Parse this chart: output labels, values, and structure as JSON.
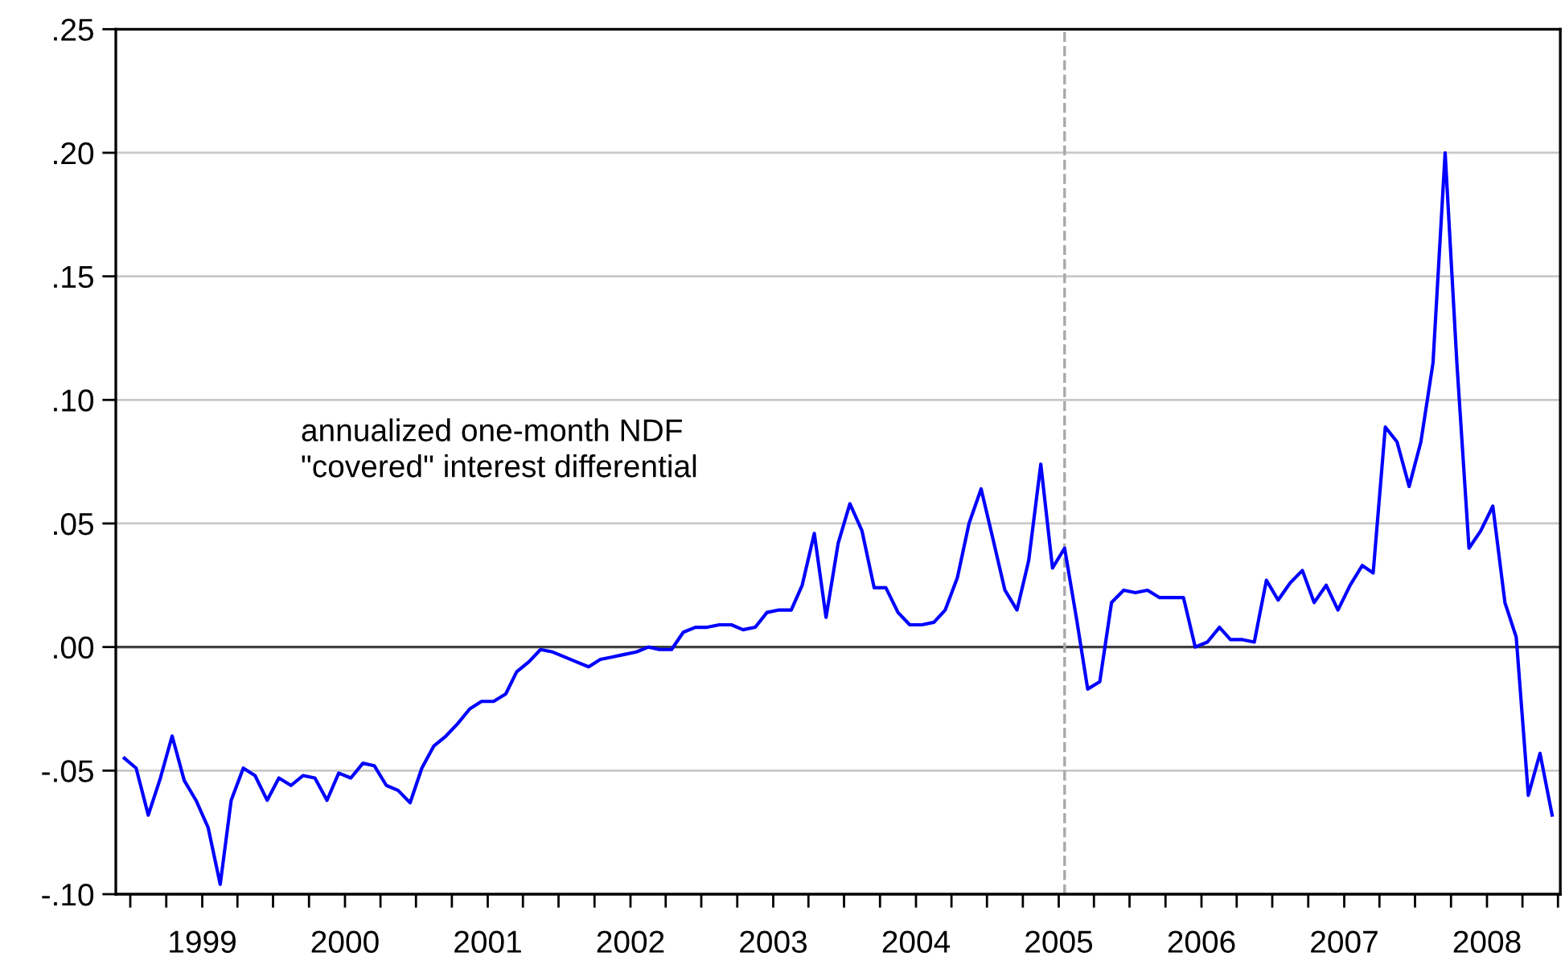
{
  "chart_data": {
    "type": "line",
    "annotations": [
      "annualized one-month NDF\n\"covered\" interest differential"
    ],
    "x": [
      "1998-06-16",
      "1998-07-16",
      "1998-08-16",
      "1998-09-16",
      "1998-10-16",
      "1998-11-16",
      "1998-12-16",
      "1999-01-16",
      "1999-02-16",
      "1999-03-16",
      "1999-04-16",
      "1999-05-16",
      "1999-06-16",
      "1999-07-16",
      "1999-08-16",
      "1999-09-16",
      "1999-10-16",
      "1999-11-16",
      "1999-12-16",
      "2000-01-16",
      "2000-02-16",
      "2000-03-16",
      "2000-04-16",
      "2000-05-16",
      "2000-06-16",
      "2000-07-16",
      "2000-08-16",
      "2000-09-16",
      "2000-10-16",
      "2000-11-16",
      "2000-12-16",
      "2001-01-16",
      "2001-02-16",
      "2001-03-16",
      "2001-04-16",
      "2001-05-16",
      "2001-06-16",
      "2001-07-16",
      "2001-08-16",
      "2001-09-16",
      "2001-10-16",
      "2001-11-16",
      "2001-12-16",
      "2002-01-16",
      "2002-02-16",
      "2002-03-16",
      "2002-04-16",
      "2002-05-16",
      "2002-06-16",
      "2002-07-16",
      "2002-08-16",
      "2002-09-16",
      "2002-10-16",
      "2002-11-16",
      "2002-12-16",
      "2003-01-16",
      "2003-02-16",
      "2003-03-16",
      "2003-04-16",
      "2003-05-16",
      "2003-06-16",
      "2003-07-16",
      "2003-08-16",
      "2003-09-16",
      "2003-10-16",
      "2003-11-16",
      "2003-12-16",
      "2004-01-16",
      "2004-02-16",
      "2004-03-16",
      "2004-04-16",
      "2004-05-16",
      "2004-06-16",
      "2004-07-16",
      "2004-08-16",
      "2004-09-16",
      "2004-10-16",
      "2004-11-16",
      "2004-12-16",
      "2005-01-16",
      "2005-02-16",
      "2005-03-16",
      "2005-04-16",
      "2005-05-16",
      "2005-06-16",
      "2005-07-16",
      "2005-08-16",
      "2005-09-16",
      "2005-10-16",
      "2005-11-16",
      "2005-12-16",
      "2006-01-16",
      "2006-02-16",
      "2006-03-16",
      "2006-04-16",
      "2006-05-16",
      "2006-06-16",
      "2006-07-16",
      "2006-08-16",
      "2006-09-16",
      "2006-10-16",
      "2006-11-16",
      "2006-12-16",
      "2007-01-16",
      "2007-02-16",
      "2007-03-16",
      "2007-04-16",
      "2007-05-16",
      "2007-06-16",
      "2007-07-16",
      "2007-08-16",
      "2007-09-16",
      "2007-10-16",
      "2007-11-16",
      "2007-12-16",
      "2008-01-16",
      "2008-02-16",
      "2008-03-16",
      "2008-04-16",
      "2008-05-16",
      "2008-06-16"
    ],
    "series": [
      {
        "color": "#0000ff",
        "values": [
          -0.045,
          -0.049,
          -0.068,
          -0.053,
          -0.036,
          -0.054,
          -0.062,
          -0.073,
          -0.096,
          -0.062,
          -0.049,
          -0.052,
          -0.062,
          -0.053,
          -0.056,
          -0.052,
          -0.053,
          -0.062,
          -0.051,
          -0.053,
          -0.047,
          -0.048,
          -0.056,
          -0.058,
          -0.063,
          -0.049,
          -0.04,
          -0.036,
          -0.031,
          -0.025,
          -0.022,
          -0.022,
          -0.019,
          -0.01,
          -0.006,
          -0.001,
          -0.002,
          -0.004,
          -0.006,
          -0.008,
          -0.005,
          -0.004,
          -0.003,
          -0.002,
          0.0,
          -0.001,
          -0.001,
          0.006,
          0.008,
          0.008,
          0.009,
          0.009,
          0.007,
          0.008,
          0.014,
          0.015,
          0.015,
          0.025,
          0.046,
          0.012,
          0.042,
          0.058,
          0.047,
          0.024,
          0.024,
          0.014,
          0.009,
          0.009,
          0.01,
          0.015,
          0.028,
          0.05,
          0.064,
          0.044,
          0.023,
          0.015,
          0.035,
          0.074,
          0.032,
          0.04,
          0.011,
          -0.017,
          -0.014,
          0.018,
          0.023,
          0.022,
          0.023,
          0.02,
          0.02,
          0.02,
          0.0,
          0.002,
          0.008,
          0.003,
          0.003,
          0.002,
          0.027,
          0.019,
          0.026,
          0.031,
          0.018,
          0.025,
          0.015,
          0.025,
          0.033,
          0.03,
          0.089,
          0.083,
          0.065,
          0.083,
          0.115,
          0.2,
          0.115,
          0.04,
          0.047,
          0.057,
          0.018,
          0.004,
          -0.06,
          -0.043,
          -0.068
        ]
      }
    ],
    "xlim": [
      "1998-05-25",
      "2008-07-07"
    ],
    "xticks": [
      {
        "value": "1998-07-01",
        "label": null
      },
      {
        "value": "1998-10-01",
        "label": null
      },
      {
        "value": "1999-01-01",
        "label": "1999"
      },
      {
        "value": "1999-04-01",
        "label": null
      },
      {
        "value": "1999-07-01",
        "label": null
      },
      {
        "value": "1999-10-01",
        "label": null
      },
      {
        "value": "2000-01-01",
        "label": "2000"
      },
      {
        "value": "2000-04-01",
        "label": null
      },
      {
        "value": "2000-07-01",
        "label": null
      },
      {
        "value": "2000-10-01",
        "label": null
      },
      {
        "value": "2001-01-01",
        "label": "2001"
      },
      {
        "value": "2001-04-01",
        "label": null
      },
      {
        "value": "2001-07-01",
        "label": null
      },
      {
        "value": "2001-10-01",
        "label": null
      },
      {
        "value": "2002-01-01",
        "label": "2002"
      },
      {
        "value": "2002-04-01",
        "label": null
      },
      {
        "value": "2002-07-01",
        "label": null
      },
      {
        "value": "2002-10-01",
        "label": null
      },
      {
        "value": "2003-01-01",
        "label": "2003"
      },
      {
        "value": "2003-04-01",
        "label": null
      },
      {
        "value": "2003-07-01",
        "label": null
      },
      {
        "value": "2003-10-01",
        "label": null
      },
      {
        "value": "2004-01-01",
        "label": "2004"
      },
      {
        "value": "2004-04-01",
        "label": null
      },
      {
        "value": "2004-07-01",
        "label": null
      },
      {
        "value": "2004-10-01",
        "label": null
      },
      {
        "value": "2005-01-01",
        "label": "2005"
      },
      {
        "value": "2005-04-01",
        "label": null
      },
      {
        "value": "2005-07-01",
        "label": null
      },
      {
        "value": "2005-10-01",
        "label": null
      },
      {
        "value": "2006-01-01",
        "label": "2006"
      },
      {
        "value": "2006-04-01",
        "label": null
      },
      {
        "value": "2006-07-01",
        "label": null
      },
      {
        "value": "2006-10-01",
        "label": null
      },
      {
        "value": "2007-01-01",
        "label": "2007"
      },
      {
        "value": "2007-04-01",
        "label": null
      },
      {
        "value": "2007-07-01",
        "label": null
      },
      {
        "value": "2007-10-01",
        "label": null
      },
      {
        "value": "2008-01-01",
        "label": "2008"
      },
      {
        "value": "2008-04-01",
        "label": null
      },
      {
        "value": "2008-07-01",
        "label": null
      }
    ],
    "ylim": [
      -0.1,
      0.25
    ],
    "yticks": [
      {
        "value": -0.1,
        "label": "-.10"
      },
      {
        "value": -0.05,
        "label": "-.05"
      },
      {
        "value": 0.0,
        "label": ".00"
      },
      {
        "value": 0.05,
        "label": ".05"
      },
      {
        "value": 0.1,
        "label": ".10"
      },
      {
        "value": 0.15,
        "label": ".15"
      },
      {
        "value": 0.2,
        "label": ".20"
      },
      {
        "value": 0.25,
        "label": ".25"
      }
    ],
    "ref_lines": [
      {
        "axis": "y",
        "value": 0.0,
        "label": null,
        "color": "#404040",
        "line_style": "solid"
      },
      {
        "axis": "x",
        "value": "2005-01-16",
        "label": null,
        "color": "#a8a8a8",
        "line_style": "dashed"
      }
    ],
    "grid": "y",
    "marker": "none",
    "line_style": "solid"
  }
}
